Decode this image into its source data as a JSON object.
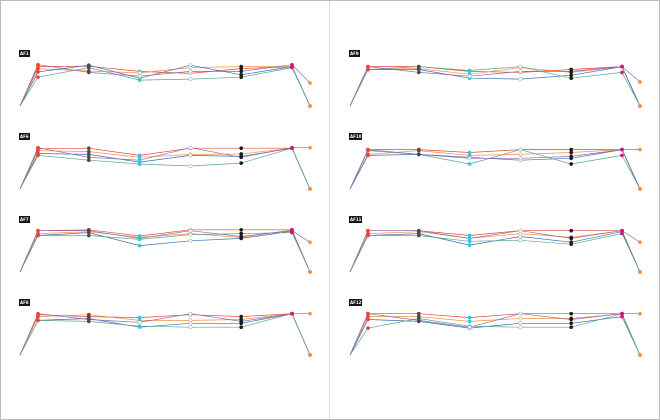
{
  "chart_data": {
    "type": "line",
    "description_free": true,
    "x": [
      0,
      1,
      2,
      3,
      4,
      5,
      6,
      7
    ],
    "ylim": [
      0,
      1
    ],
    "marker_colors": {
      "red": "#e8443c",
      "orange": "#f5923e",
      "black": "#1a1a1a",
      "dark": "#4a4a4a",
      "cyan": "#38c3e0",
      "white": "#ffffff",
      "magenta": "#d0197a",
      "peach": "#f0a15a"
    },
    "series_colors": [
      "#e8443c",
      "#f5923e",
      "#3e6fb0",
      "#5aa88c",
      "#8e6bb5",
      "#e37cb4",
      "#9ab0c8",
      "#ef8b7a"
    ],
    "panels": [
      {
        "label": "AF1",
        "series": [
          {
            "values": [
              0.0,
              0.82,
              0.83,
              0.72,
              0.68,
              0.78,
              0.82,
              0.0
            ],
            "markers": [
              "none",
              "red",
              "dark",
              "cyan",
              "white",
              "black",
              "magenta",
              "orange"
            ]
          },
          {
            "values": [
              0.0,
              0.78,
              0.73,
              0.69,
              0.8,
              0.82,
              0.82,
              0.0
            ],
            "markers": [
              "none",
              "red",
              "dark",
              "white",
              "white",
              "black",
              "magenta",
              "orange"
            ]
          },
          {
            "values": [
              0.0,
              0.71,
              0.85,
              0.58,
              0.85,
              0.65,
              0.82,
              0.0
            ],
            "markers": [
              "none",
              "red",
              "dark",
              "cyan",
              "white",
              "black",
              "magenta",
              "orange"
            ]
          },
          {
            "values": [
              0.0,
              0.6,
              0.8,
              0.54,
              0.56,
              0.6,
              0.8,
              0.0
            ],
            "markers": [
              "none",
              "red",
              "dark",
              "cyan",
              "white",
              "black",
              "magenta",
              "orange"
            ]
          },
          {
            "values": [
              0.0,
              0.86,
              0.7,
              0.62,
              0.72,
              0.72,
              0.86,
              0.48
            ],
            "markers": [
              "none",
              "red",
              "dark",
              "white",
              "white",
              "black",
              "magenta",
              "orange"
            ]
          }
        ]
      },
      {
        "label": "AF6",
        "series": [
          {
            "values": [
              0.0,
              0.84,
              0.85,
              0.7,
              0.85,
              0.85,
              0.85,
              0.0
            ],
            "markers": [
              "none",
              "red",
              "dark",
              "cyan",
              "white",
              "black",
              "magenta",
              "orange"
            ]
          },
          {
            "values": [
              0.0,
              0.8,
              0.78,
              0.66,
              0.72,
              0.73,
              0.85,
              0.0
            ],
            "markers": [
              "none",
              "red",
              "dark",
              "cyan",
              "white",
              "black",
              "magenta",
              "orange"
            ]
          },
          {
            "values": [
              0.0,
              0.74,
              0.72,
              0.56,
              0.7,
              0.68,
              0.85,
              0.0
            ],
            "markers": [
              "none",
              "red",
              "dark",
              "cyan",
              "white",
              "black",
              "magenta",
              "orange"
            ]
          },
          {
            "values": [
              0.0,
              0.7,
              0.6,
              0.52,
              0.48,
              0.54,
              0.85,
              0.0
            ],
            "markers": [
              "none",
              "red",
              "dark",
              "cyan",
              "white",
              "black",
              "magenta",
              "orange"
            ]
          },
          {
            "values": [
              0.0,
              0.86,
              0.66,
              0.6,
              0.86,
              0.66,
              0.86,
              0.86
            ],
            "markers": [
              "none",
              "red",
              "dark",
              "cyan",
              "white",
              "black",
              "magenta",
              "orange"
            ]
          }
        ]
      },
      {
        "label": "AF7",
        "series": [
          {
            "values": [
              0.0,
              0.86,
              0.88,
              0.75,
              0.88,
              0.88,
              0.88,
              0.0
            ],
            "markers": [
              "none",
              "red",
              "dark",
              "cyan",
              "white",
              "black",
              "magenta",
              "orange"
            ]
          },
          {
            "values": [
              0.0,
              0.8,
              0.84,
              0.72,
              0.8,
              0.72,
              0.88,
              0.0
            ],
            "markers": [
              "none",
              "red",
              "dark",
              "cyan",
              "white",
              "black",
              "magenta",
              "orange"
            ]
          },
          {
            "values": [
              0.0,
              0.76,
              0.82,
              0.55,
              0.65,
              0.7,
              0.85,
              0.0
            ],
            "markers": [
              "none",
              "red",
              "dark",
              "cyan",
              "white",
              "black",
              "magenta",
              "orange"
            ]
          },
          {
            "values": [
              0.0,
              0.76,
              0.76,
              0.68,
              0.78,
              0.8,
              0.82,
              0.0
            ],
            "markers": [
              "none",
              "red",
              "dark",
              "cyan",
              "white",
              "black",
              "magenta",
              "orange"
            ]
          },
          {
            "values": [
              0.0,
              0.86,
              0.86,
              0.7,
              0.86,
              0.74,
              0.86,
              0.62
            ],
            "markers": [
              "none",
              "red",
              "dark",
              "cyan",
              "white",
              "black",
              "magenta",
              "orange"
            ]
          }
        ]
      },
      {
        "label": "AF8",
        "series": [
          {
            "values": [
              0.0,
              0.84,
              0.8,
              0.78,
              0.84,
              0.8,
              0.86,
              0.0
            ],
            "markers": [
              "none",
              "red",
              "dark",
              "cyan",
              "white",
              "black",
              "magenta",
              "orange"
            ]
          },
          {
            "values": [
              0.0,
              0.8,
              0.84,
              0.72,
              0.72,
              0.74,
              0.86,
              0.0
            ],
            "markers": [
              "none",
              "red",
              "dark",
              "cyan",
              "white",
              "black",
              "magenta",
              "orange"
            ]
          },
          {
            "values": [
              0.0,
              0.72,
              0.76,
              0.58,
              0.66,
              0.66,
              0.86,
              0.0
            ],
            "markers": [
              "none",
              "red",
              "dark",
              "cyan",
              "white",
              "black",
              "magenta",
              "orange"
            ]
          },
          {
            "values": [
              0.0,
              0.72,
              0.7,
              0.6,
              0.58,
              0.58,
              0.86,
              0.0
            ],
            "markers": [
              "none",
              "red",
              "dark",
              "cyan",
              "white",
              "black",
              "magenta",
              "orange"
            ]
          },
          {
            "values": [
              0.0,
              0.86,
              0.74,
              0.68,
              0.86,
              0.7,
              0.86,
              0.86
            ],
            "markers": [
              "none",
              "red",
              "dark",
              "white",
              "white",
              "black",
              "magenta",
              "orange"
            ]
          }
        ]
      },
      {
        "label": "AF9",
        "series": [
          {
            "values": [
              0.0,
              0.82,
              0.82,
              0.72,
              0.7,
              0.76,
              0.82,
              0.0
            ],
            "markers": [
              "none",
              "red",
              "dark",
              "cyan",
              "white",
              "black",
              "magenta",
              "orange"
            ]
          },
          {
            "values": [
              0.0,
              0.76,
              0.78,
              0.66,
              0.8,
              0.7,
              0.82,
              0.0
            ],
            "markers": [
              "none",
              "red",
              "dark",
              "cyan",
              "white",
              "black",
              "magenta",
              "orange"
            ]
          },
          {
            "values": [
              0.0,
              0.76,
              0.76,
              0.58,
              0.56,
              0.64,
              0.82,
              0.0
            ],
            "markers": [
              "none",
              "red",
              "dark",
              "cyan",
              "white",
              "black",
              "magenta",
              "orange"
            ]
          },
          {
            "values": [
              0.0,
              0.76,
              0.82,
              0.74,
              0.82,
              0.58,
              0.7,
              0.0
            ],
            "markers": [
              "none",
              "red",
              "dark",
              "cyan",
              "white",
              "black",
              "magenta",
              "orange"
            ]
          },
          {
            "values": [
              0.0,
              0.82,
              0.7,
              0.62,
              0.72,
              0.72,
              0.82,
              0.5
            ],
            "markers": [
              "none",
              "red",
              "dark",
              "white",
              "white",
              "black",
              "magenta",
              "orange"
            ]
          }
        ]
      },
      {
        "label": "AF10",
        "series": [
          {
            "values": [
              0.0,
              0.82,
              0.82,
              0.76,
              0.82,
              0.82,
              0.82,
              0.0
            ],
            "markers": [
              "none",
              "red",
              "dark",
              "cyan",
              "white",
              "black",
              "magenta",
              "orange"
            ]
          },
          {
            "values": [
              0.0,
              0.72,
              0.8,
              0.7,
              0.72,
              0.76,
              0.82,
              0.0
            ],
            "markers": [
              "none",
              "red",
              "dark",
              "cyan",
              "white",
              "black",
              "magenta",
              "orange"
            ]
          },
          {
            "values": [
              0.0,
              0.7,
              0.72,
              0.66,
              0.6,
              0.64,
              0.82,
              0.0
            ],
            "markers": [
              "none",
              "red",
              "dark",
              "cyan",
              "white",
              "black",
              "magenta",
              "orange"
            ]
          },
          {
            "values": [
              0.0,
              0.8,
              0.72,
              0.52,
              0.82,
              0.52,
              0.7,
              0.0
            ],
            "markers": [
              "none",
              "red",
              "dark",
              "cyan",
              "white",
              "black",
              "magenta",
              "orange"
            ]
          },
          {
            "values": [
              0.0,
              0.82,
              0.72,
              0.64,
              0.64,
              0.68,
              0.82,
              0.82
            ],
            "markers": [
              "none",
              "red",
              "dark",
              "white",
              "white",
              "black",
              "magenta",
              "orange"
            ]
          }
        ]
      },
      {
        "label": "AF11",
        "series": [
          {
            "values": [
              0.0,
              0.86,
              0.86,
              0.76,
              0.86,
              0.86,
              0.86,
              0.0
            ],
            "markers": [
              "none",
              "red",
              "dark",
              "cyan",
              "white",
              "black",
              "magenta",
              "orange"
            ]
          },
          {
            "values": [
              0.0,
              0.8,
              0.84,
              0.7,
              0.8,
              0.72,
              0.86,
              0.0
            ],
            "markers": [
              "none",
              "red",
              "dark",
              "cyan",
              "white",
              "black",
              "magenta",
              "orange"
            ]
          },
          {
            "values": [
              0.0,
              0.76,
              0.8,
              0.56,
              0.74,
              0.62,
              0.84,
              0.0
            ],
            "markers": [
              "none",
              "red",
              "dark",
              "cyan",
              "white",
              "black",
              "magenta",
              "orange"
            ]
          },
          {
            "values": [
              0.0,
              0.76,
              0.76,
              0.64,
              0.66,
              0.58,
              0.8,
              0.0
            ],
            "markers": [
              "none",
              "red",
              "dark",
              "cyan",
              "white",
              "black",
              "magenta",
              "orange"
            ]
          },
          {
            "values": [
              0.0,
              0.86,
              0.86,
              0.7,
              0.86,
              0.7,
              0.86,
              0.62
            ],
            "markers": [
              "none",
              "red",
              "dark",
              "cyan",
              "white",
              "black",
              "magenta",
              "orange"
            ]
          }
        ]
      },
      {
        "label": "AF12",
        "series": [
          {
            "values": [
              0.0,
              0.86,
              0.86,
              0.78,
              0.86,
              0.86,
              0.86,
              0.0
            ],
            "markers": [
              "none",
              "red",
              "dark",
              "cyan",
              "white",
              "black",
              "magenta",
              "orange"
            ]
          },
          {
            "values": [
              0.0,
              0.8,
              0.8,
              0.7,
              0.76,
              0.76,
              0.86,
              0.0
            ],
            "markers": [
              "none",
              "red",
              "dark",
              "cyan",
              "white",
              "black",
              "magenta",
              "orange"
            ]
          },
          {
            "values": [
              0.0,
              0.74,
              0.7,
              0.56,
              0.66,
              0.66,
              0.8,
              0.0
            ],
            "markers": [
              "none",
              "red",
              "dark",
              "cyan",
              "white",
              "black",
              "magenta",
              "orange"
            ]
          },
          {
            "values": [
              0.0,
              0.56,
              0.76,
              0.6,
              0.58,
              0.58,
              0.86,
              0.0
            ],
            "markers": [
              "none",
              "red",
              "dark",
              "cyan",
              "white",
              "black",
              "magenta",
              "orange"
            ]
          },
          {
            "values": [
              0.0,
              0.86,
              0.72,
              0.58,
              0.86,
              0.74,
              0.86,
              0.86
            ],
            "markers": [
              "none",
              "red",
              "dark",
              "white",
              "white",
              "black",
              "magenta",
              "orange"
            ]
          }
        ]
      }
    ]
  }
}
